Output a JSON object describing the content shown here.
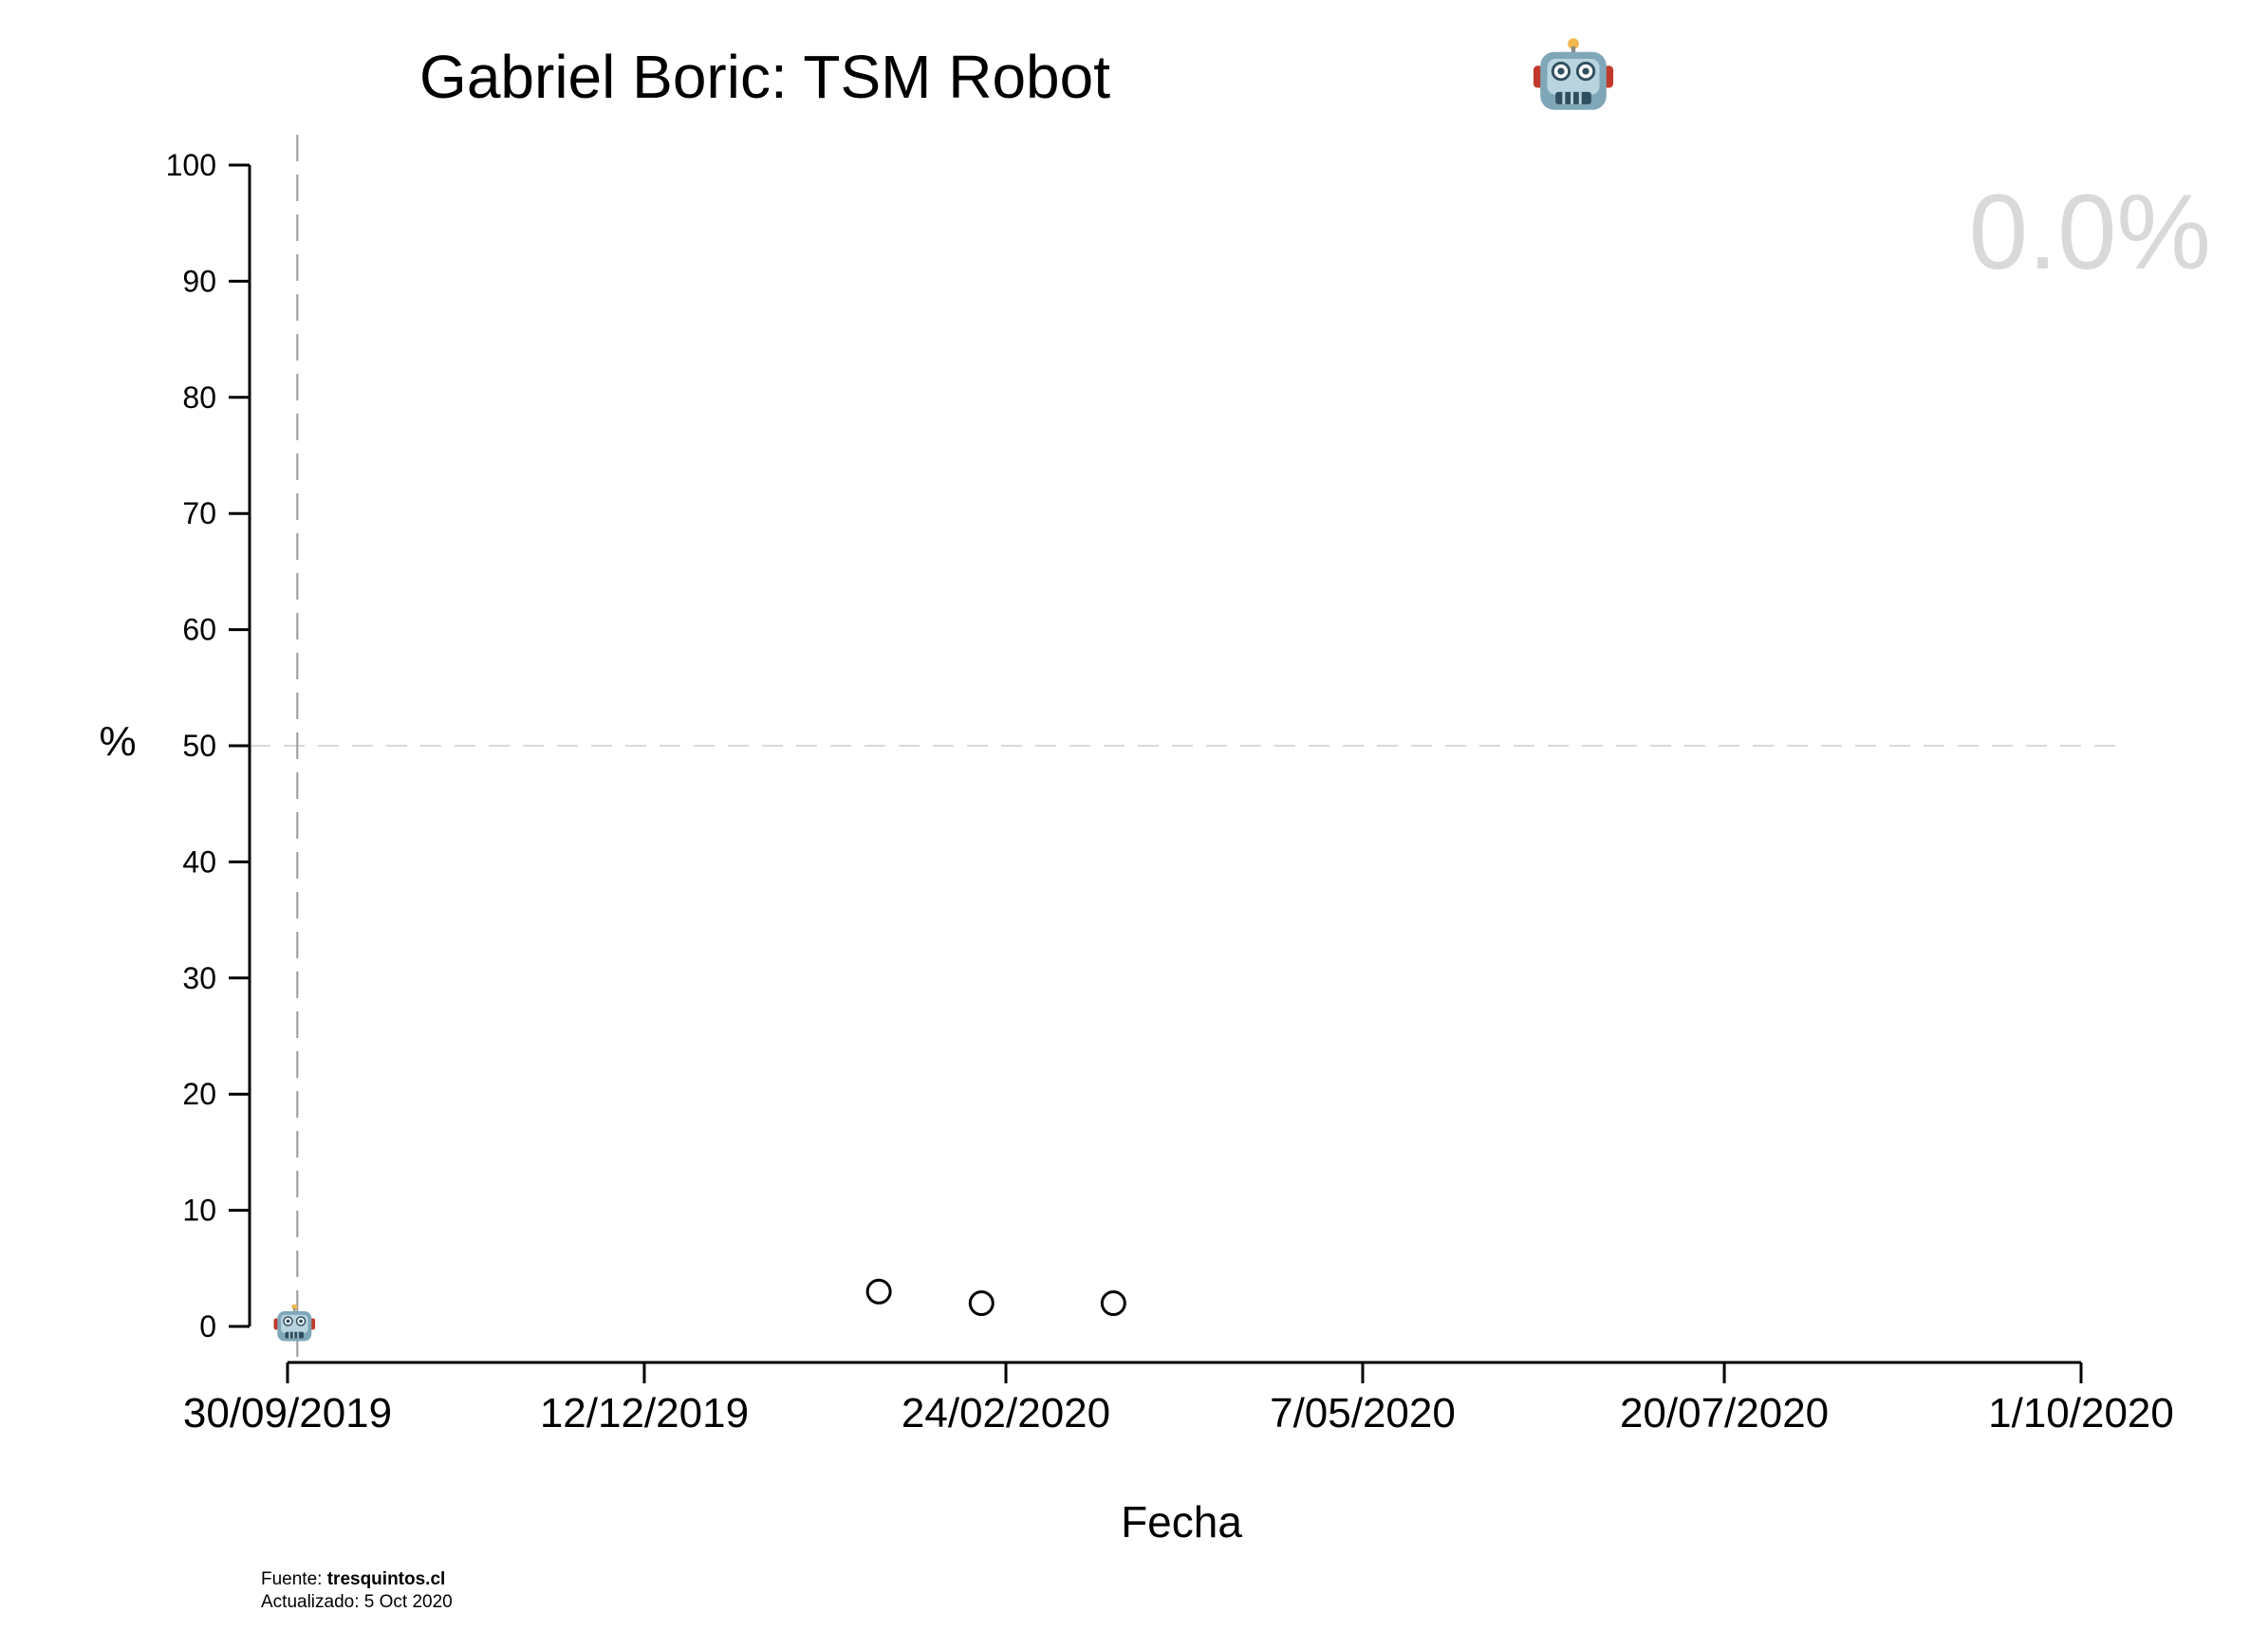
{
  "chart_data": {
    "type": "scatter",
    "title": "Gabriel Boric: TSM Robot",
    "title_icon": "robot-face-icon",
    "xlabel": "Fecha",
    "ylabel": "%",
    "ylim": [
      0,
      100
    ],
    "xlim": [
      "2019-09-30",
      "2020-10-01"
    ],
    "y_ticks": [
      0,
      10,
      20,
      30,
      40,
      50,
      60,
      70,
      80,
      90,
      100
    ],
    "x_ticks": [
      {
        "date": "2019-09-30",
        "label": "30/09/2019"
      },
      {
        "date": "2019-12-12",
        "label": "12/12/2019"
      },
      {
        "date": "2020-02-24",
        "label": "24/02/2020"
      },
      {
        "date": "2020-05-07",
        "label": "7/05/2020"
      },
      {
        "date": "2020-07-20",
        "label": "20/07/2020"
      },
      {
        "date": "2020-10-01",
        "label": "1/10/2020"
      }
    ],
    "reference_lines": {
      "horizontal_y": 50,
      "vertical_x": "2019-10-02"
    },
    "points": [
      {
        "x": "2020-01-29",
        "y": 3
      },
      {
        "x": "2020-02-19",
        "y": 2
      },
      {
        "x": "2020-03-17",
        "y": 2
      }
    ],
    "marker_point": {
      "x": "2019-10-02",
      "y": 0,
      "icon": "robot-face-icon"
    },
    "current_value_label": "0.0%",
    "colors": {
      "axis": "#000000",
      "ref_line": "#999999",
      "hline": "#d9d9d9",
      "big_value": "#d9d9d9",
      "marker": "#000000"
    }
  },
  "footer": {
    "source_prefix": "Fuente: ",
    "source_name": "tresquintos.cl",
    "updated": "Actualizado: 5 Oct 2020"
  }
}
